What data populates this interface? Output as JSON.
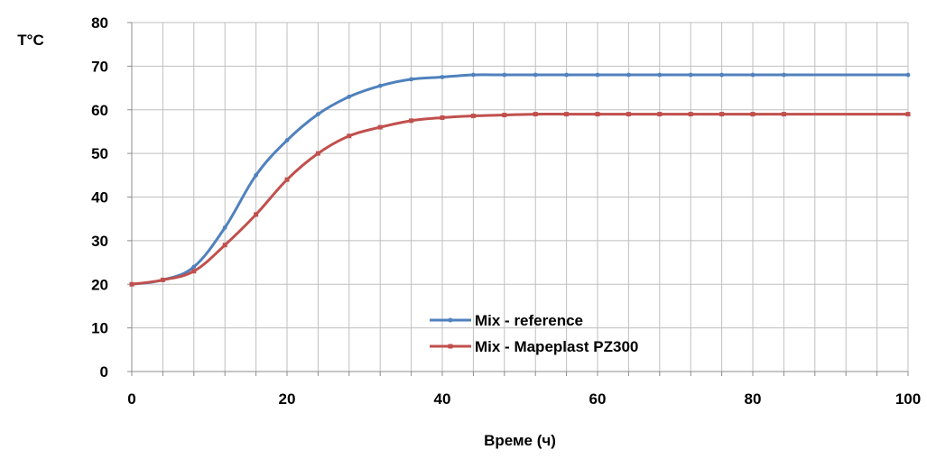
{
  "chart_data": {
    "type": "line",
    "title": "",
    "xlabel": "Време (ч)",
    "ylabel": "T°C",
    "xlim": [
      0,
      100
    ],
    "ylim": [
      0,
      80
    ],
    "xticks": [
      0,
      20,
      40,
      60,
      80,
      100
    ],
    "xtick_labels": [
      "0",
      "20",
      "40",
      "60",
      "80",
      "100"
    ],
    "yticks": [
      0,
      10,
      20,
      30,
      40,
      50,
      60,
      70,
      80
    ],
    "ytick_labels": [
      "0",
      "10",
      "20",
      "30",
      "40",
      "50",
      "60",
      "70",
      "80"
    ],
    "grid": true,
    "grid_x_step": 4,
    "grid_y_step": 10,
    "legend_position": "lower-center",
    "series": [
      {
        "name": "Mix - reference",
        "color": "#4f81bd",
        "x": [
          0,
          4,
          8,
          12,
          16,
          20,
          24,
          28,
          32,
          36,
          40,
          44,
          48,
          52,
          56,
          60,
          64,
          68,
          72,
          76,
          80,
          84,
          100
        ],
        "y": [
          20,
          21,
          24,
          33,
          45,
          53,
          59,
          63,
          65.5,
          67,
          67.5,
          68,
          68,
          68,
          68,
          68,
          68,
          68,
          68,
          68,
          68,
          68,
          68
        ]
      },
      {
        "name": "Mix - Mapeplast PZ300",
        "color": "#c0504d",
        "x": [
          0,
          4,
          8,
          12,
          16,
          20,
          24,
          28,
          32,
          36,
          40,
          44,
          48,
          52,
          56,
          60,
          64,
          68,
          72,
          76,
          80,
          84,
          100
        ],
        "y": [
          20,
          21,
          23,
          29,
          36,
          44,
          50,
          54,
          56,
          57.5,
          58.2,
          58.6,
          58.8,
          59,
          59,
          59,
          59,
          59,
          59,
          59,
          59,
          59,
          59
        ]
      }
    ]
  }
}
